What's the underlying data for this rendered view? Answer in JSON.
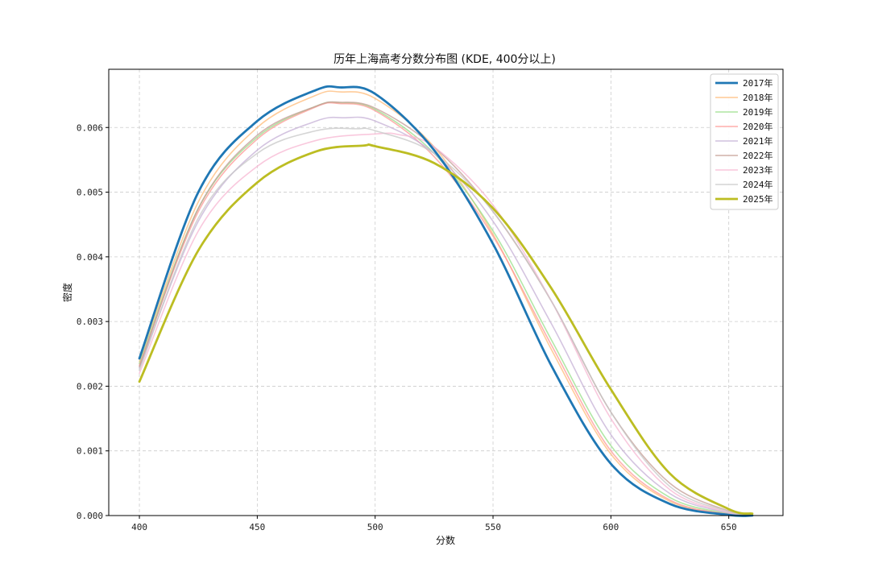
{
  "chart_data": {
    "type": "line",
    "title": "历年上海高考分数分布图 (KDE, 400分以上)",
    "xlabel": "分数",
    "ylabel": "密度",
    "xlim": [
      387,
      673
    ],
    "ylim": [
      0,
      0.0069
    ],
    "xticks": [
      400,
      450,
      500,
      550,
      600,
      650
    ],
    "yticks": [
      0.0,
      0.001,
      0.002,
      0.003,
      0.004,
      0.005,
      0.006
    ],
    "ytick_labels": [
      "0.000",
      "0.001",
      "0.002",
      "0.003",
      "0.004",
      "0.005",
      "0.006"
    ],
    "grid": true,
    "legend_position": "top-right",
    "series": [
      {
        "name": "2017年",
        "color": "#1f77b4",
        "emphasis": true,
        "x": [
          400,
          425,
          450,
          475,
          485,
          500,
          525,
          550,
          575,
          600,
          625,
          650,
          660
        ],
        "y": [
          0.00243,
          0.005,
          0.0061,
          0.00658,
          0.00662,
          0.00652,
          0.00565,
          0.0042,
          0.0023,
          0.0008,
          0.00018,
          1e-05,
          0.0
        ]
      },
      {
        "name": "2018年",
        "color": "#ffbb78",
        "emphasis": false,
        "x": [
          400,
          425,
          450,
          475,
          485,
          500,
          525,
          550,
          575,
          600,
          625,
          650,
          660
        ],
        "y": [
          0.00238,
          0.00485,
          0.006,
          0.0065,
          0.00655,
          0.00645,
          0.0057,
          0.00435,
          0.00255,
          0.00095,
          0.00022,
          2e-05,
          1e-05
        ]
      },
      {
        "name": "2019年",
        "color": "#98df8a",
        "emphasis": false,
        "x": [
          400,
          425,
          450,
          475,
          485,
          500,
          525,
          550,
          575,
          600,
          625,
          650,
          660
        ],
        "y": [
          0.00235,
          0.00475,
          0.00585,
          0.00633,
          0.00638,
          0.00628,
          0.0056,
          0.0044,
          0.0027,
          0.00108,
          0.00028,
          3e-05,
          1e-05
        ]
      },
      {
        "name": "2020年",
        "color": "#ff9896",
        "emphasis": false,
        "x": [
          400,
          425,
          450,
          475,
          485,
          500,
          525,
          550,
          575,
          600,
          625,
          650,
          660
        ],
        "y": [
          0.00232,
          0.0047,
          0.00582,
          0.00632,
          0.00637,
          0.00626,
          0.00555,
          0.00432,
          0.00262,
          0.001,
          0.00024,
          2e-05,
          1e-05
        ]
      },
      {
        "name": "2021年",
        "color": "#c5b0d5",
        "emphasis": false,
        "x": [
          400,
          425,
          450,
          475,
          487,
          500,
          525,
          550,
          575,
          600,
          625,
          650,
          660
        ],
        "y": [
          0.00228,
          0.00455,
          0.00565,
          0.0061,
          0.00615,
          0.0061,
          0.0056,
          0.00455,
          0.00295,
          0.00125,
          0.00034,
          4e-05,
          1e-05
        ]
      },
      {
        "name": "2022年",
        "color": "#c49c94",
        "emphasis": false,
        "x": [
          400,
          425,
          450,
          475,
          485,
          500,
          525,
          550,
          575,
          600,
          625,
          650,
          660
        ],
        "y": [
          0.0023,
          0.00475,
          0.00588,
          0.00633,
          0.00639,
          0.0063,
          0.0057,
          0.0047,
          0.0033,
          0.0016,
          0.0005,
          7e-05,
          2e-05
        ]
      },
      {
        "name": "2023年",
        "color": "#f7b6d2",
        "emphasis": false,
        "x": [
          400,
          425,
          450,
          475,
          500,
          510,
          525,
          550,
          575,
          600,
          625,
          650,
          660
        ],
        "y": [
          0.0022,
          0.0044,
          0.0054,
          0.0058,
          0.0059,
          0.00589,
          0.0057,
          0.0048,
          0.0033,
          0.0015,
          0.0004,
          5e-05,
          1e-05
        ]
      },
      {
        "name": "2024年",
        "color": "#c7c7c7",
        "emphasis": false,
        "x": [
          400,
          425,
          450,
          475,
          492,
          500,
          525,
          550,
          575,
          600,
          625,
          650,
          660
        ],
        "y": [
          0.00225,
          0.0046,
          0.0056,
          0.00595,
          0.00598,
          0.00595,
          0.0056,
          0.0047,
          0.0033,
          0.0016,
          0.00045,
          6e-05,
          1e-05
        ]
      },
      {
        "name": "2025年",
        "color": "#bcbd22",
        "emphasis": true,
        "x": [
          400,
          425,
          450,
          475,
          495,
          500,
          525,
          550,
          575,
          600,
          625,
          650,
          660
        ],
        "y": [
          0.00207,
          0.0041,
          0.00515,
          0.00563,
          0.00572,
          0.00571,
          0.00545,
          0.00475,
          0.0035,
          0.00195,
          0.00065,
          0.0001,
          3e-05
        ]
      }
    ]
  }
}
